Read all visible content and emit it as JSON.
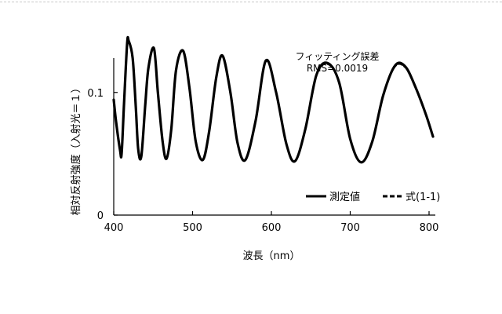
{
  "chart_data": {
    "type": "line",
    "xlabel": "波長（nm）",
    "ylabel": "相対反射強度（入射光＝１）",
    "xlim": [
      400,
      800
    ],
    "ylim": [
      0,
      0.16
    ],
    "x_ticks": [
      400,
      500,
      600,
      700,
      800
    ],
    "x_tick_labels": [
      "400",
      "500",
      "600",
      "700",
      "800"
    ],
    "y_ticks": [
      0,
      0.1
    ],
    "y_tick_labels": [
      "0",
      "0.1"
    ],
    "annotation": {
      "line1": "フィッティング誤差",
      "line2": "RMS=0.0019"
    },
    "legend_position": "lower-right",
    "series": [
      {
        "name": "測定値",
        "style": "solid",
        "x": [
          400,
          403,
          408,
          410,
          413,
          417,
          419,
          424,
          428,
          431,
          435,
          440,
          444,
          451,
          456,
          462,
          467,
          473,
          479,
          488,
          496,
          504,
          513,
          521,
          530,
          538,
          548,
          557,
          567,
          580,
          593,
          606,
          619,
          630,
          643,
          657,
          671,
          686,
          700,
          714,
          728,
          742,
          757,
          770,
          783,
          796,
          805
        ],
        "y": [
          0.094,
          0.076,
          0.053,
          0.05,
          0.09,
          0.14,
          0.142,
          0.128,
          0.088,
          0.054,
          0.048,
          0.09,
          0.12,
          0.136,
          0.1,
          0.06,
          0.046,
          0.07,
          0.118,
          0.134,
          0.104,
          0.06,
          0.045,
          0.068,
          0.112,
          0.13,
          0.1,
          0.059,
          0.045,
          0.077,
          0.126,
          0.1,
          0.058,
          0.044,
          0.07,
          0.114,
          0.124,
          0.108,
          0.062,
          0.043,
          0.06,
          0.098,
          0.122,
          0.121,
          0.104,
          0.082,
          0.064
        ]
      },
      {
        "name": "式(1-1)",
        "style": "dashed",
        "x": [
          400,
          403,
          408,
          410,
          413,
          417,
          419,
          424,
          428,
          431,
          435,
          440,
          444,
          451,
          456,
          462,
          467,
          473,
          479,
          488,
          496,
          504,
          513,
          521,
          530,
          538,
          548,
          557,
          567,
          580,
          593,
          606,
          619,
          630,
          643,
          657,
          671,
          686,
          700,
          714,
          728,
          742,
          757,
          770,
          783,
          796,
          805
        ],
        "y": [
          0.093,
          0.075,
          0.053,
          0.051,
          0.089,
          0.138,
          0.141,
          0.127,
          0.087,
          0.054,
          0.048,
          0.089,
          0.119,
          0.135,
          0.1,
          0.06,
          0.046,
          0.07,
          0.117,
          0.133,
          0.104,
          0.06,
          0.045,
          0.068,
          0.111,
          0.129,
          0.1,
          0.059,
          0.045,
          0.077,
          0.125,
          0.1,
          0.058,
          0.044,
          0.07,
          0.113,
          0.123,
          0.108,
          0.062,
          0.043,
          0.06,
          0.098,
          0.121,
          0.12,
          0.104,
          0.082,
          0.064
        ]
      }
    ]
  }
}
